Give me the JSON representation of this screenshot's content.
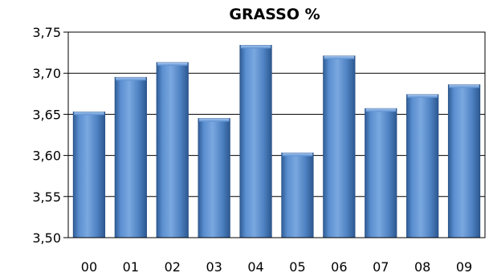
{
  "chart_data": {
    "type": "bar",
    "title": "GRASSO %",
    "xlabel": "",
    "ylabel": "",
    "categories": [
      "00",
      "01",
      "02",
      "03",
      "04",
      "05",
      "06",
      "07",
      "08",
      "09"
    ],
    "values": [
      3.653,
      3.695,
      3.713,
      3.645,
      3.734,
      3.603,
      3.721,
      3.657,
      3.674,
      3.686
    ],
    "ylim": [
      3.5,
      3.75
    ],
    "yticks": [
      "3,50",
      "3,55",
      "3,60",
      "3,65",
      "3,70",
      "3,75"
    ],
    "grid": true,
    "legend": "none",
    "bar_color": "#4f81bd"
  }
}
